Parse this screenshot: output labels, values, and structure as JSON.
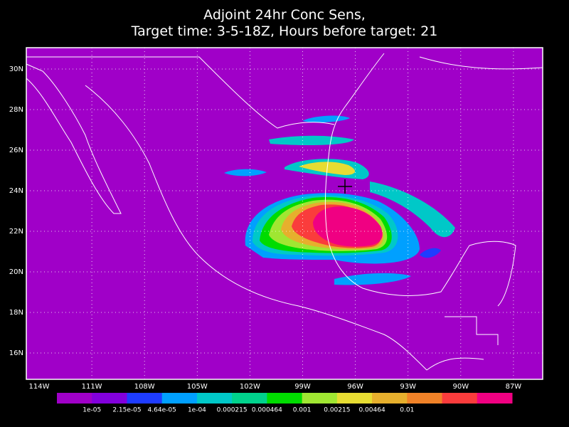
{
  "title": [
    "Adjoint 24hr Conc Sens,",
    "Target time: 3-5-18Z, Hours before target: 21"
  ],
  "lat_labels": [
    "30N",
    "28N",
    "26N",
    "24N",
    "22N",
    "20N",
    "18N",
    "16N"
  ],
  "lon_labels": [
    "114W",
    "111W",
    "108W",
    "105W",
    "102W",
    "99W",
    "96W",
    "93W",
    "90W",
    "87W"
  ],
  "colorbar": {
    "colors": [
      "#a000c8",
      "#8200dc",
      "#1e3cff",
      "#00a0ff",
      "#00c8c8",
      "#00d28c",
      "#00dc00",
      "#a0e632",
      "#e6dc32",
      "#e6af2d",
      "#f08228",
      "#fa3c3c",
      "#f00082"
    ],
    "labels": [
      "1e-05",
      "2.15e-05",
      "4.64e-05",
      "1e-04",
      "0.000215",
      "0.000464",
      "0.001",
      "0.00215",
      "0.00464",
      "0.01"
    ]
  }
}
